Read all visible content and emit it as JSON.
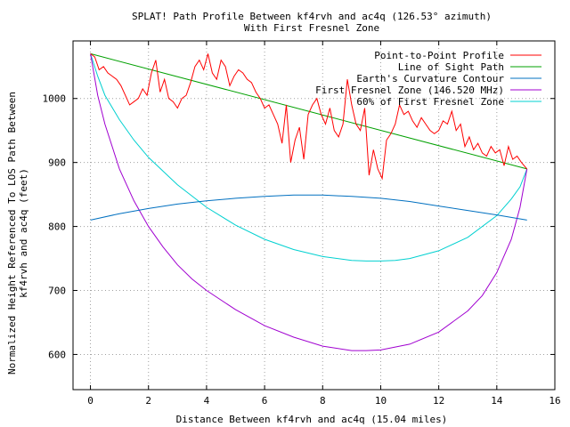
{
  "chart_data": {
    "type": "line",
    "title": "SPLAT! Path Profile Between kf4rvh and ac4q (126.53° azimuth)",
    "subtitle": "With First Fresnel Zone",
    "xlabel": "Distance Between kf4rvh and ac4q (15.04 miles)",
    "ylabel_line1": "Normalized Height Referenced To LOS Path Between",
    "ylabel_line2": "kf4rvh and ac4q (feet)",
    "xlim": [
      -0.6,
      16
    ],
    "ylim": [
      545,
      1090
    ],
    "x_ticks": [
      0,
      2,
      4,
      6,
      8,
      10,
      12,
      14,
      16
    ],
    "y_ticks": [
      600,
      700,
      800,
      900,
      1000
    ],
    "grid": true,
    "legend_position": "top-right",
    "series": [
      {
        "name": "Point-to-Point Profile",
        "color": "#ff0000",
        "x": [
          0,
          0.15,
          0.3,
          0.45,
          0.6,
          0.75,
          0.9,
          1.05,
          1.2,
          1.35,
          1.5,
          1.65,
          1.8,
          1.95,
          2.1,
          2.25,
          2.4,
          2.55,
          2.7,
          2.85,
          3.0,
          3.15,
          3.3,
          3.45,
          3.6,
          3.75,
          3.9,
          4.05,
          4.2,
          4.35,
          4.5,
          4.65,
          4.8,
          4.95,
          5.1,
          5.25,
          5.4,
          5.55,
          5.7,
          5.85,
          6.0,
          6.15,
          6.3,
          6.45,
          6.6,
          6.75,
          6.9,
          7.05,
          7.2,
          7.35,
          7.5,
          7.65,
          7.8,
          7.95,
          8.1,
          8.25,
          8.4,
          8.55,
          8.7,
          8.85,
          9.0,
          9.15,
          9.3,
          9.45,
          9.6,
          9.75,
          9.9,
          10.05,
          10.2,
          10.35,
          10.5,
          10.65,
          10.8,
          10.95,
          11.1,
          11.25,
          11.4,
          11.55,
          11.7,
          11.85,
          12.0,
          12.15,
          12.3,
          12.45,
          12.6,
          12.75,
          12.9,
          13.05,
          13.2,
          13.35,
          13.5,
          13.65,
          13.8,
          13.95,
          14.1,
          14.25,
          14.4,
          14.55,
          14.7,
          14.85,
          15.04
        ],
        "y": [
          1070,
          1065,
          1045,
          1050,
          1040,
          1035,
          1030,
          1020,
          1005,
          990,
          995,
          1000,
          1015,
          1005,
          1040,
          1060,
          1010,
          1030,
          1000,
          995,
          985,
          1000,
          1005,
          1025,
          1050,
          1060,
          1045,
          1070,
          1040,
          1030,
          1060,
          1050,
          1020,
          1035,
          1045,
          1040,
          1030,
          1025,
          1010,
          1000,
          985,
          990,
          975,
          960,
          930,
          990,
          900,
          935,
          955,
          905,
          975,
          990,
          1000,
          975,
          960,
          985,
          950,
          940,
          960,
          1030,
          990,
          960,
          950,
          985,
          880,
          920,
          890,
          875,
          935,
          945,
          960,
          990,
          975,
          980,
          965,
          955,
          970,
          960,
          950,
          945,
          950,
          965,
          960,
          980,
          950,
          960,
          925,
          940,
          920,
          930,
          915,
          910,
          925,
          915,
          920,
          895,
          925,
          905,
          910,
          900,
          890
        ]
      },
      {
        "name": "Line of Sight Path",
        "color": "#00a000",
        "x": [
          0,
          15.04
        ],
        "y": [
          1070,
          890
        ]
      },
      {
        "name": "Earth's Curvature Contour",
        "color": "#0070c0",
        "x": [
          0,
          1,
          2,
          3,
          4,
          5,
          6,
          7,
          7.5,
          8,
          9,
          10,
          11,
          12,
          13,
          14,
          15.04
        ],
        "y": [
          810,
          820,
          828,
          835,
          840,
          844,
          847,
          849,
          849,
          849,
          847,
          844,
          839,
          832,
          825,
          818,
          810
        ]
      },
      {
        "name": "First Fresnel Zone (146.520 MHz)",
        "color": "#a000d0",
        "x": [
          0,
          0.25,
          0.5,
          1,
          1.5,
          2,
          2.5,
          3,
          3.5,
          4,
          5,
          6,
          7,
          8,
          9,
          9.5,
          10,
          11,
          12,
          13,
          13.5,
          14,
          14.5,
          14.8,
          15.04
        ],
        "y": [
          1070,
          1005,
          960,
          890,
          840,
          800,
          768,
          740,
          718,
          700,
          670,
          645,
          627,
          613,
          606,
          606,
          607,
          616,
          635,
          668,
          692,
          728,
          780,
          830,
          890
        ]
      },
      {
        "name": "60% of First Fresnel Zone",
        "color": "#00d0d0",
        "x": [
          0,
          0.25,
          0.5,
          1,
          1.5,
          2,
          3,
          4,
          5,
          6,
          7,
          8,
          9,
          9.5,
          10,
          10.5,
          11,
          12,
          13,
          14,
          14.5,
          14.8,
          15.04
        ],
        "y": [
          1070,
          1035,
          1005,
          967,
          935,
          908,
          865,
          830,
          802,
          780,
          764,
          753,
          747,
          746,
          746,
          747,
          750,
          762,
          783,
          817,
          843,
          862,
          890
        ]
      }
    ]
  }
}
